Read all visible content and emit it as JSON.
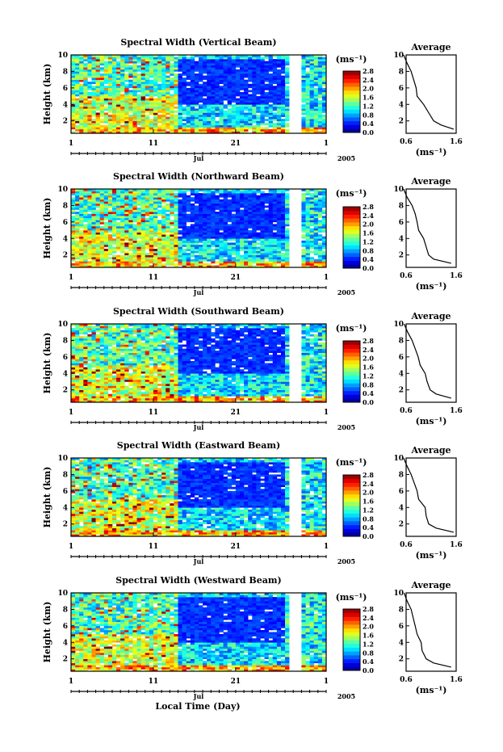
{
  "xlabel": "Local Time (Day)",
  "x_ticks": [
    "1",
    "11",
    "21",
    "1"
  ],
  "month": "Jul",
  "year": "2005",
  "ylabel": "Height (km)",
  "y_ticks": [
    "2",
    "4",
    "6",
    "8",
    "10"
  ],
  "cbar_unit": "(ms⁻¹)",
  "cbar_ticks": [
    "0.0",
    "0.4",
    "0.8",
    "1.2",
    "1.6",
    "2.0",
    "2.4",
    "2.8"
  ],
  "avg_title": "Average",
  "avg_xlabel": "(ms⁻¹)",
  "avg_x_ticks": [
    "0.6",
    "1.6"
  ],
  "chart_data": [
    {
      "type": "heatmap",
      "title": "Spectral Width (Vertical Beam)",
      "x_range_days": [
        1,
        32
      ],
      "y_range_km": [
        0.5,
        10
      ],
      "profile": {
        "type": "line",
        "height_km": [
          1.0,
          1.5,
          2.0,
          3.0,
          4.0,
          5.0,
          6.0,
          7.0,
          8.0,
          9.0,
          10.0
        ],
        "width_ms": [
          1.55,
          1.3,
          1.15,
          1.05,
          0.95,
          0.82,
          0.8,
          0.75,
          0.7,
          0.62,
          0.55
        ]
      }
    },
    {
      "type": "heatmap",
      "title": "Spectral Width (Northward Beam)",
      "x_range_days": [
        1,
        32
      ],
      "y_range_km": [
        0.5,
        10
      ],
      "profile": {
        "type": "line",
        "height_km": [
          1.0,
          1.5,
          2.0,
          3.0,
          4.0,
          5.0,
          6.0,
          7.0,
          8.0,
          9.0,
          10.0
        ],
        "width_ms": [
          1.5,
          1.15,
          1.05,
          1.0,
          0.95,
          0.85,
          0.82,
          0.78,
          0.72,
          0.62,
          0.55
        ]
      }
    },
    {
      "type": "heatmap",
      "title": "Spectral Width (Southward Beam)",
      "x_range_days": [
        1,
        32
      ],
      "y_range_km": [
        0.5,
        10
      ],
      "profile": {
        "type": "line",
        "height_km": [
          1.0,
          1.5,
          2.0,
          3.0,
          4.0,
          5.0,
          6.0,
          7.0,
          8.0,
          9.0,
          10.0
        ],
        "width_ms": [
          1.5,
          1.2,
          1.08,
          1.02,
          0.98,
          0.88,
          0.84,
          0.78,
          0.72,
          0.63,
          0.56
        ]
      }
    },
    {
      "type": "heatmap",
      "title": "Spectral Width (Eastward Beam)",
      "x_range_days": [
        1,
        32
      ],
      "y_range_km": [
        0.5,
        10
      ],
      "profile": {
        "type": "line",
        "height_km": [
          1.0,
          1.5,
          2.0,
          3.0,
          4.0,
          5.0,
          6.0,
          7.0,
          8.0,
          9.0,
          10.0
        ],
        "width_ms": [
          1.55,
          1.2,
          1.05,
          1.0,
          0.98,
          0.85,
          0.82,
          0.76,
          0.7,
          0.62,
          0.55
        ]
      }
    },
    {
      "type": "heatmap",
      "title": "Spectral Width (Westward Beam)",
      "x_range_days": [
        1,
        32
      ],
      "y_range_km": [
        0.5,
        10
      ],
      "profile": {
        "type": "line",
        "height_km": [
          1.0,
          1.5,
          2.0,
          3.0,
          4.0,
          5.0,
          6.0,
          7.0,
          8.0,
          9.0,
          10.0
        ],
        "width_ms": [
          1.5,
          1.15,
          1.0,
          0.92,
          0.9,
          0.82,
          0.78,
          0.74,
          0.7,
          0.62,
          0.56
        ]
      }
    }
  ]
}
